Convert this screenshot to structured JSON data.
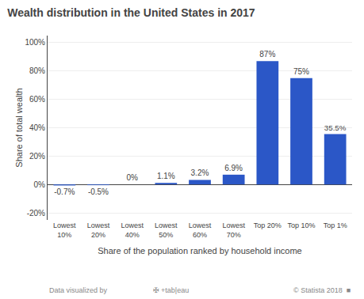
{
  "chart_data": {
    "type": "bar",
    "title": "Wealth distribution in the United States in 2017",
    "categories": [
      "Lowest\n10%",
      "Lowest\n20%",
      "Lowest\n40%",
      "Lowest\n50%",
      "Lowest\n60%",
      "Lowest\n70%",
      "Top 20%",
      "Top 10%",
      "Top 1%"
    ],
    "values": [
      -0.7,
      -0.5,
      0.0,
      1.1,
      3.2,
      6.9,
      87.0,
      75.0,
      35.5
    ],
    "value_labels": [
      "-0.7%",
      "-0.5%",
      "0%",
      "1.1%",
      "3.2%",
      "6.9%",
      "87%",
      "75%",
      "35.5%"
    ],
    "data_labels": true,
    "color": "#2b57c7",
    "xlabel": "Share of the population ranked by household income",
    "ylabel": "Share of total wealth",
    "ylim": [
      -25,
      105
    ],
    "yticks": [
      {
        "value": -20,
        "label": "-20%"
      },
      {
        "value": 0,
        "label": "0%"
      },
      {
        "value": 20,
        "label": "20%"
      },
      {
        "value": 40,
        "label": "40%"
      },
      {
        "value": 60,
        "label": "60%"
      },
      {
        "value": 80,
        "label": "80%"
      },
      {
        "value": 100,
        "label": "100%"
      }
    ],
    "grid": true,
    "annotations": [
      "Data visualized by",
      "✠ +tab|eau",
      "© Statista 2018  ■"
    ]
  }
}
